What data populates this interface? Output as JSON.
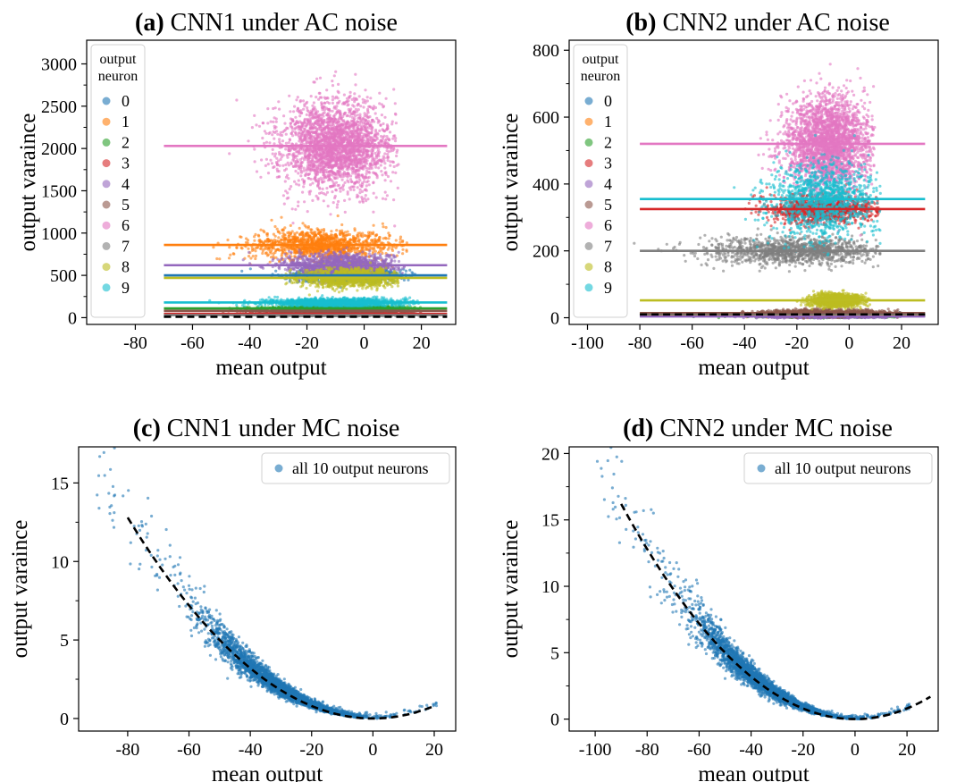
{
  "figure": {
    "panels": [
      {
        "id": "a",
        "prefix": "(a)",
        "title": "CNN1 under AC noise"
      },
      {
        "id": "b",
        "prefix": "(b)",
        "title": "CNN2 under AC noise"
      },
      {
        "id": "c",
        "prefix": "(c)",
        "title": "CNN1 under MC noise"
      },
      {
        "id": "d",
        "prefix": "(d)",
        "title": "CNN2 under MC noise"
      }
    ]
  },
  "chart_data": [
    {
      "id": "a",
      "type": "scatter",
      "title": "(a) CNN1 under AC noise",
      "xlabel": "mean output",
      "ylabel": "output varaince",
      "xlim": [
        -97,
        32
      ],
      "ylim": [
        -80,
        3280
      ],
      "xticks": [
        -80,
        -60,
        -40,
        -20,
        0,
        20
      ],
      "xtick_labels": [
        "-80",
        "-60",
        "-40",
        "-20",
        "0",
        "20"
      ],
      "yticks": [
        0,
        500,
        1000,
        1500,
        2000,
        2500,
        3000
      ],
      "ytick_labels": [
        "0",
        "500",
        "1000",
        "1500",
        "2000",
        "2500",
        "3000"
      ],
      "legend": {
        "title": "output\nneuron",
        "position": "top-left",
        "entries": [
          "0",
          "1",
          "2",
          "3",
          "4",
          "5",
          "6",
          "7",
          "8",
          "9"
        ]
      },
      "colors": [
        "#1f77b4",
        "#ff7f0e",
        "#2ca02c",
        "#d62728",
        "#9467bd",
        "#8c564b",
        "#e377c2",
        "#7f7f7f",
        "#bcbd22",
        "#17becf"
      ],
      "series": [
        {
          "name": "0",
          "mean_x": -5,
          "sd_x": 9,
          "mean_y": 500,
          "sd_y": 35,
          "x_range": [
            -50,
            18
          ],
          "hline": 500
        },
        {
          "name": "1",
          "mean_x": -15,
          "sd_x": 12,
          "mean_y": 860,
          "sd_y": 90,
          "x_range": [
            -62,
            15
          ],
          "hline": 860
        },
        {
          "name": "2",
          "mean_x": -10,
          "sd_x": 12,
          "mean_y": 110,
          "sd_y": 12,
          "x_range": [
            -60,
            20
          ],
          "hline": 110
        },
        {
          "name": "3",
          "mean_x": -10,
          "sd_x": 12,
          "mean_y": 45,
          "sd_y": 6,
          "x_range": [
            -60,
            20
          ],
          "hline": 45
        },
        {
          "name": "4",
          "mean_x": -8,
          "sd_x": 10,
          "mean_y": 620,
          "sd_y": 70,
          "x_range": [
            -55,
            15
          ],
          "hline": 620
        },
        {
          "name": "5",
          "mean_x": -10,
          "sd_x": 12,
          "mean_y": 80,
          "sd_y": 10,
          "x_range": [
            -60,
            20
          ],
          "hline": 80
        },
        {
          "name": "6",
          "mean_x": -10,
          "sd_x": 10,
          "mean_y": 2030,
          "sd_y": 260,
          "x_range": [
            -50,
            12
          ],
          "hline": 2030
        },
        {
          "name": "7",
          "mean_x": -10,
          "sd_x": 12,
          "mean_y": 30,
          "sd_y": 5,
          "x_range": [
            -60,
            20
          ],
          "hline": 30
        },
        {
          "name": "8",
          "mean_x": -5,
          "sd_x": 9,
          "mean_y": 470,
          "sd_y": 55,
          "x_range": [
            -30,
            12
          ],
          "hline": 470
        },
        {
          "name": "9",
          "mean_x": -10,
          "sd_x": 12,
          "mean_y": 180,
          "sd_y": 25,
          "x_range": [
            -65,
            20
          ],
          "hline": 180
        }
      ],
      "hline_x_range": [
        -70,
        29
      ],
      "dashed_line": {
        "y": 10,
        "x_range": [
          -70,
          29
        ],
        "color": "#000000"
      }
    },
    {
      "id": "b",
      "type": "scatter",
      "title": "(b) CNN2 under AC noise",
      "xlabel": "mean output",
      "ylabel": "output varaince",
      "xlim": [
        -107,
        34
      ],
      "ylim": [
        -20,
        830
      ],
      "xticks": [
        -100,
        -80,
        -60,
        -40,
        -20,
        0,
        20
      ],
      "xtick_labels": [
        "-100",
        "-80",
        "-60",
        "-40",
        "-20",
        "0",
        "20"
      ],
      "yticks": [
        0,
        200,
        400,
        600,
        800
      ],
      "ytick_labels": [
        "0",
        "200",
        "400",
        "600",
        "800"
      ],
      "legend": {
        "title": "output\nneuron",
        "position": "top-left",
        "entries": [
          "0",
          "1",
          "2",
          "3",
          "4",
          "5",
          "6",
          "7",
          "8",
          "9"
        ]
      },
      "colors": [
        "#1f77b4",
        "#ff7f0e",
        "#2ca02c",
        "#d62728",
        "#9467bd",
        "#8c564b",
        "#e377c2",
        "#7f7f7f",
        "#bcbd22",
        "#17becf"
      ],
      "series": [
        {
          "name": "0",
          "mean_x": -10,
          "sd_x": 12,
          "mean_y": 8,
          "sd_y": 3,
          "x_range": [
            -80,
            20
          ],
          "hline": 8
        },
        {
          "name": "1",
          "mean_x": -10,
          "sd_x": 12,
          "mean_y": 6,
          "sd_y": 2,
          "x_range": [
            -80,
            20
          ],
          "hline": 6
        },
        {
          "name": "2",
          "mean_x": -10,
          "sd_x": 12,
          "mean_y": 5,
          "sd_y": 2,
          "x_range": [
            -80,
            20
          ],
          "hline": 5
        },
        {
          "name": "3",
          "mean_x": -10,
          "sd_x": 10,
          "mean_y": 325,
          "sd_y": 20,
          "x_range": [
            -40,
            12
          ],
          "hline": 325
        },
        {
          "name": "4",
          "mean_x": -10,
          "sd_x": 12,
          "mean_y": 4,
          "sd_y": 2,
          "x_range": [
            -80,
            20
          ],
          "hline": 4
        },
        {
          "name": "5",
          "mean_x": -10,
          "sd_x": 12,
          "mean_y": 14,
          "sd_y": 5,
          "x_range": [
            -80,
            20
          ],
          "hline": 14
        },
        {
          "name": "6",
          "mean_x": -8,
          "sd_x": 8,
          "mean_y": 520,
          "sd_y": 70,
          "x_range": [
            -40,
            10
          ],
          "hline": 520
        },
        {
          "name": "7",
          "mean_x": -20,
          "sd_x": 16,
          "mean_y": 200,
          "sd_y": 20,
          "x_range": [
            -85,
            12
          ],
          "hline": 200
        },
        {
          "name": "8",
          "mean_x": -5,
          "sd_x": 5,
          "mean_y": 52,
          "sd_y": 10,
          "x_range": [
            -20,
            8
          ],
          "hline": 52
        },
        {
          "name": "9",
          "mean_x": -10,
          "sd_x": 10,
          "mean_y": 355,
          "sd_y": 60,
          "x_range": [
            -80,
            12
          ],
          "hline": 355
        }
      ],
      "hline_x_range": [
        -80,
        29
      ],
      "dashed_line": {
        "y": 10,
        "x_range": [
          -80,
          29
        ],
        "color": "#000000"
      }
    },
    {
      "id": "c",
      "type": "scatter",
      "title": "(c) CNN1 under MC noise",
      "xlabel": "mean output",
      "ylabel": "output varaince",
      "xlim": [
        -96,
        27
      ],
      "ylim": [
        -0.8,
        17.3
      ],
      "xticks": [
        -80,
        -60,
        -40,
        -20,
        0,
        20
      ],
      "xtick_labels": [
        "-80",
        "-60",
        "-40",
        "-20",
        "0",
        "20"
      ],
      "yticks": [
        0,
        5,
        10,
        15
      ],
      "ytick_labels": [
        "0",
        "5",
        "10",
        "15"
      ],
      "legend": {
        "position": "top-right",
        "entries": [
          "all 10 output neurons"
        ]
      },
      "colors": [
        "#1f77b4"
      ],
      "curve": {
        "type": "quadratic",
        "coef": 0.002,
        "x_range": [
          -80,
          20
        ],
        "dashed": true,
        "color": "#000000"
      },
      "points": {
        "x_range": [
          -90,
          21
        ],
        "center": -30,
        "spread": 12,
        "rel_noise": 0.13
      }
    },
    {
      "id": "d",
      "type": "scatter",
      "title": "(d) CNN2 under MC noise",
      "xlabel": "mean output",
      "ylabel": "output varaince",
      "xlim": [
        -110,
        32
      ],
      "ylim": [
        -0.9,
        20.5
      ],
      "xticks": [
        -100,
        -80,
        -60,
        -40,
        -20,
        0,
        20
      ],
      "xtick_labels": [
        "-100",
        "-80",
        "-60",
        "-40",
        "-20",
        "0",
        "20"
      ],
      "yticks": [
        0,
        5,
        10,
        15,
        20
      ],
      "ytick_labels": [
        "0",
        "5",
        "10",
        "15",
        "20"
      ],
      "legend": {
        "position": "top-right",
        "entries": [
          "all 10 output neurons"
        ]
      },
      "colors": [
        "#1f77b4"
      ],
      "curve": {
        "type": "quadratic",
        "coef": 0.002,
        "x_range": [
          -90,
          29
        ],
        "dashed": true,
        "color": "#000000"
      },
      "points": {
        "x_range": [
          -100,
          21
        ],
        "center": -35,
        "spread": 14,
        "rel_noise": 0.13
      }
    }
  ]
}
